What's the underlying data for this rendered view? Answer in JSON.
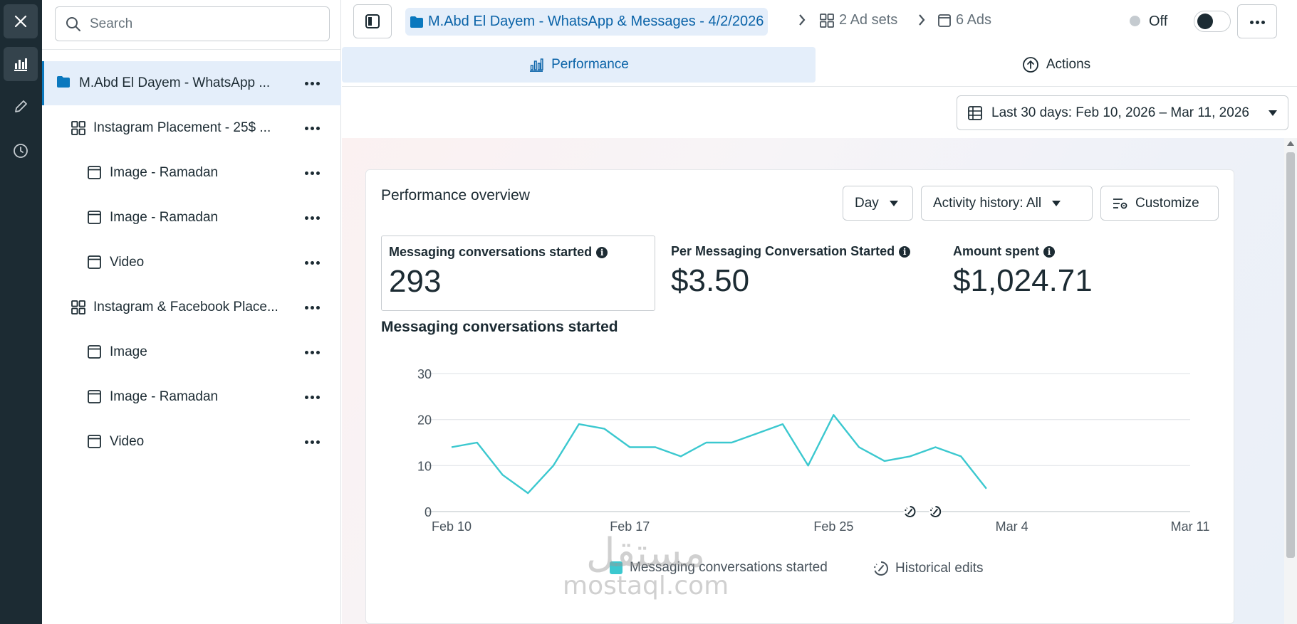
{
  "search": {
    "placeholder": "Search"
  },
  "tree": [
    {
      "label": "M.Abd El Dayem - WhatsApp ...",
      "kind": "campaign",
      "icon": "folder-icon",
      "selected": true
    },
    {
      "label": "Instagram Placement - 25$ ...",
      "kind": "adset",
      "icon": "grid-icon",
      "selected": false
    },
    {
      "label": "Image - Ramadan",
      "kind": "ad",
      "icon": "ad-icon",
      "selected": false
    },
    {
      "label": "Image - Ramadan",
      "kind": "ad",
      "icon": "ad-icon",
      "selected": false
    },
    {
      "label": "Video",
      "kind": "ad",
      "icon": "ad-icon",
      "selected": false
    },
    {
      "label": "Instagram & Facebook Place...",
      "kind": "adset",
      "icon": "grid-icon",
      "selected": false
    },
    {
      "label": "Image",
      "kind": "ad",
      "icon": "ad-icon",
      "selected": false
    },
    {
      "label": "Image - Ramadan",
      "kind": "ad",
      "icon": "ad-icon",
      "selected": false
    },
    {
      "label": "Video",
      "kind": "ad",
      "icon": "ad-icon",
      "selected": false
    }
  ],
  "header": {
    "campaign": "M.Abd El Dayem - WhatsApp & Messages - 4/2/2026",
    "adsets": "2 Ad sets",
    "ads": "6 Ads",
    "status": "Off"
  },
  "tabs": {
    "performance": "Performance",
    "actions": "Actions"
  },
  "date_range": "Last 30 days: Feb 10, 2026 – Mar 11, 2026",
  "overview": {
    "title": "Performance overview",
    "day": "Day",
    "activity": "Activity history: All",
    "customize": "Customize",
    "metrics": [
      {
        "label": "Messaging conversations started",
        "value": "293"
      },
      {
        "label": "Per Messaging Conversation Started",
        "value": "$3.50"
      },
      {
        "label": "Amount spent",
        "value": "$1,024.71"
      }
    ],
    "chart_title": "Messaging conversations started",
    "legend_series": "Messaging conversations started",
    "legend_edits": "Historical edits"
  },
  "colors": {
    "accent": "#0a78be",
    "series": "#3bc8cf",
    "rail": "#1c2b33"
  },
  "chart_data": {
    "type": "line",
    "title": "Messaging conversations started",
    "x_tick_labels": [
      "Feb 10",
      "Feb 17",
      "Feb 25",
      "Mar 4",
      "Mar 11"
    ],
    "x_tick_day_index": [
      0,
      7,
      15,
      22,
      29
    ],
    "y_ticks": [
      0,
      10,
      20,
      30
    ],
    "ylim": [
      0,
      30
    ],
    "grid": true,
    "x_day_count": 30,
    "series": [
      {
        "name": "Messaging conversations started",
        "values": [
          14,
          15,
          8,
          4,
          10,
          19,
          18,
          14,
          14,
          12,
          15,
          15,
          17,
          19,
          10,
          21,
          14,
          11,
          12,
          14,
          12,
          5
        ]
      }
    ],
    "historical_edit_day_index": [
      18,
      19
    ],
    "legend": [
      "Messaging conversations started",
      "Historical edits"
    ],
    "legend_position": "bottom"
  },
  "watermark": {
    "arabic": "مستقل",
    "latin": "mostaql.com"
  }
}
